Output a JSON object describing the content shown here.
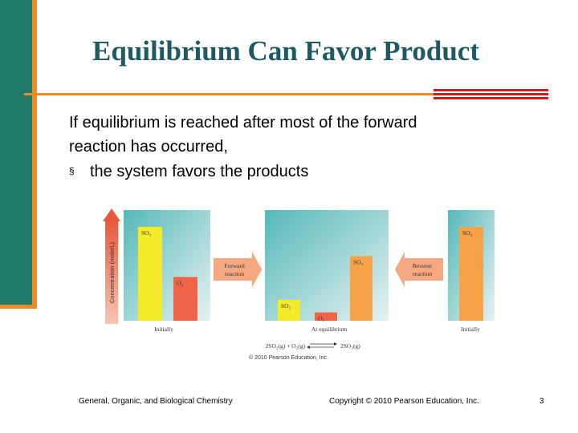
{
  "slide": {
    "title": "Equilibrium Can Favor Product",
    "body_line1": "If equilibrium is reached after most of the forward",
    "body_line2": "reaction has occurred,",
    "bullet_symbol": "§",
    "bullet_text": "the system favors the products"
  },
  "figure": {
    "y_axis_label": "Concentration (mole/L)",
    "panels": {
      "left": {
        "caption": "Initially",
        "bars": [
          {
            "label": "SO₃",
            "level": 0.9,
            "color": "#f5ea2a"
          },
          {
            "label": "O₂",
            "level": 0.42,
            "color": "#ee6448"
          }
        ]
      },
      "middle": {
        "caption": "At equilibrium",
        "bars": [
          {
            "label": "SO₂",
            "level": 0.2,
            "color": "#f5ea2a"
          },
          {
            "label": "O₂",
            "level": 0.08,
            "color": "#ee6448"
          },
          {
            "label": "SO₃",
            "level": 0.62,
            "color": "#f5a248"
          }
        ]
      },
      "right": {
        "caption": "Initially",
        "bars": [
          {
            "label": "SO₃",
            "level": 0.9,
            "color": "#f5a248"
          }
        ]
      }
    },
    "arrow_forward_line1": "Forward",
    "arrow_forward_line2": "reaction",
    "arrow_reverse_line1": "Reverse",
    "arrow_reverse_line2": "reaction",
    "equation_left": "2SO₂(g) + O₂(g)",
    "equation_right": "2SO₃(g)",
    "copyright": "© 2010 Pearson Education, Inc."
  },
  "footer": {
    "left": "General, Organic, and Biological Chemistry",
    "center": "Copyright © 2010 Pearson Education, Inc.",
    "page": "3"
  },
  "colors": {
    "teal": "#1f7a6a",
    "orange": "#f08a24",
    "title": "#1f5a64",
    "arrow": "#f5a882"
  }
}
